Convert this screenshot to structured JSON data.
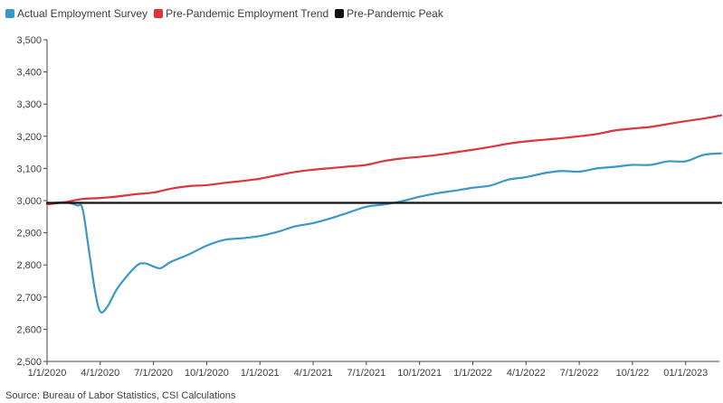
{
  "legend": {
    "items": [
      {
        "label": "Actual Employment Survey",
        "color": "#3a97c9"
      },
      {
        "label": "Pre-Pandemic Employment Trend",
        "color": "#d9363e"
      },
      {
        "label": "Pre-Pandemic Peak",
        "color": "#111111"
      }
    ]
  },
  "source": "Source: Bureau of Labor Statistics, CSI Calculations",
  "chart_data": {
    "type": "line",
    "title": "",
    "xlabel": "",
    "ylabel": "",
    "ylim": [
      2500,
      3500
    ],
    "yticks": [
      2500,
      2600,
      2700,
      2800,
      2900,
      3000,
      3100,
      3200,
      3300,
      3400,
      3500
    ],
    "ytick_labels": [
      "2,500",
      "2,600",
      "2,700",
      "2,800",
      "2,900",
      "3,000",
      "3,100",
      "3,200",
      "3,300",
      "3,400",
      "3,500"
    ],
    "xticks": [
      {
        "month": 0,
        "label": "1/1/2020"
      },
      {
        "month": 3,
        "label": "4/1/2020"
      },
      {
        "month": 6,
        "label": "7/1/2020"
      },
      {
        "month": 9,
        "label": "10/1/2020"
      },
      {
        "month": 12,
        "label": "1/1/2021"
      },
      {
        "month": 15,
        "label": "4/1/2021"
      },
      {
        "month": 18,
        "label": "7/1/2021"
      },
      {
        "month": 21,
        "label": "10/1/2021"
      },
      {
        "month": 24,
        "label": "1/1/2022"
      },
      {
        "month": 27,
        "label": "4/1/2022"
      },
      {
        "month": 30,
        "label": "7/1/2022"
      },
      {
        "month": 33,
        "label": "10/1/22"
      },
      {
        "month": 36,
        "label": "01/1/2023"
      }
    ],
    "xlim_months": [
      0,
      37.9
    ],
    "grid": {
      "horizontal": false,
      "vertical": false
    },
    "legend_position": "top-left",
    "series": [
      {
        "name": "Actual Employment Survey",
        "color": "#3a97c9",
        "points": [
          [
            0,
            2990
          ],
          [
            1,
            2995
          ],
          [
            1.7,
            2985
          ],
          [
            2,
            2975
          ],
          [
            2.35,
            2850
          ],
          [
            2.7,
            2720
          ],
          [
            3,
            2655
          ],
          [
            3.4,
            2670
          ],
          [
            4,
            2730
          ],
          [
            5,
            2795
          ],
          [
            5.5,
            2805
          ],
          [
            6,
            2795
          ],
          [
            6.4,
            2790
          ],
          [
            7,
            2810
          ],
          [
            8,
            2833
          ],
          [
            9,
            2860
          ],
          [
            10,
            2878
          ],
          [
            11,
            2883
          ],
          [
            12,
            2890
          ],
          [
            13,
            2903
          ],
          [
            14,
            2920
          ],
          [
            15,
            2930
          ],
          [
            16,
            2945
          ],
          [
            17,
            2963
          ],
          [
            18,
            2981
          ],
          [
            19,
            2988
          ],
          [
            20,
            2998
          ],
          [
            21,
            3012
          ],
          [
            22,
            3023
          ],
          [
            23,
            3031
          ],
          [
            24,
            3040
          ],
          [
            25,
            3047
          ],
          [
            26,
            3065
          ],
          [
            27,
            3073
          ],
          [
            28,
            3085
          ],
          [
            29,
            3092
          ],
          [
            30,
            3090
          ],
          [
            31,
            3100
          ],
          [
            32,
            3105
          ],
          [
            33,
            3111
          ],
          [
            34,
            3111
          ],
          [
            35,
            3122
          ],
          [
            36,
            3122
          ],
          [
            37,
            3142
          ],
          [
            38,
            3147
          ]
        ]
      },
      {
        "name": "Pre-Pandemic Employment Trend",
        "color": "#d9363e",
        "points": [
          [
            0,
            2988
          ],
          [
            1,
            2995
          ],
          [
            2,
            3005
          ],
          [
            3,
            3008
          ],
          [
            4,
            3013
          ],
          [
            5,
            3020
          ],
          [
            6,
            3025
          ],
          [
            7,
            3037
          ],
          [
            8,
            3045
          ],
          [
            9,
            3048
          ],
          [
            10,
            3055
          ],
          [
            11,
            3061
          ],
          [
            12,
            3068
          ],
          [
            13,
            3079
          ],
          [
            14,
            3089
          ],
          [
            15,
            3096
          ],
          [
            16,
            3101
          ],
          [
            17,
            3106
          ],
          [
            18,
            3111
          ],
          [
            19,
            3123
          ],
          [
            20,
            3131
          ],
          [
            21,
            3136
          ],
          [
            22,
            3142
          ],
          [
            23,
            3150
          ],
          [
            24,
            3158
          ],
          [
            25,
            3167
          ],
          [
            26,
            3177
          ],
          [
            27,
            3184
          ],
          [
            28,
            3189
          ],
          [
            29,
            3194
          ],
          [
            30,
            3200
          ],
          [
            31,
            3207
          ],
          [
            32,
            3218
          ],
          [
            33,
            3224
          ],
          [
            34,
            3229
          ],
          [
            35,
            3238
          ],
          [
            36,
            3247
          ],
          [
            37,
            3255
          ],
          [
            38,
            3265
          ]
        ]
      },
      {
        "name": "Pre-Pandemic Peak",
        "color": "#111111",
        "points": [
          [
            0,
            2993
          ],
          [
            38,
            2993
          ]
        ]
      }
    ]
  }
}
